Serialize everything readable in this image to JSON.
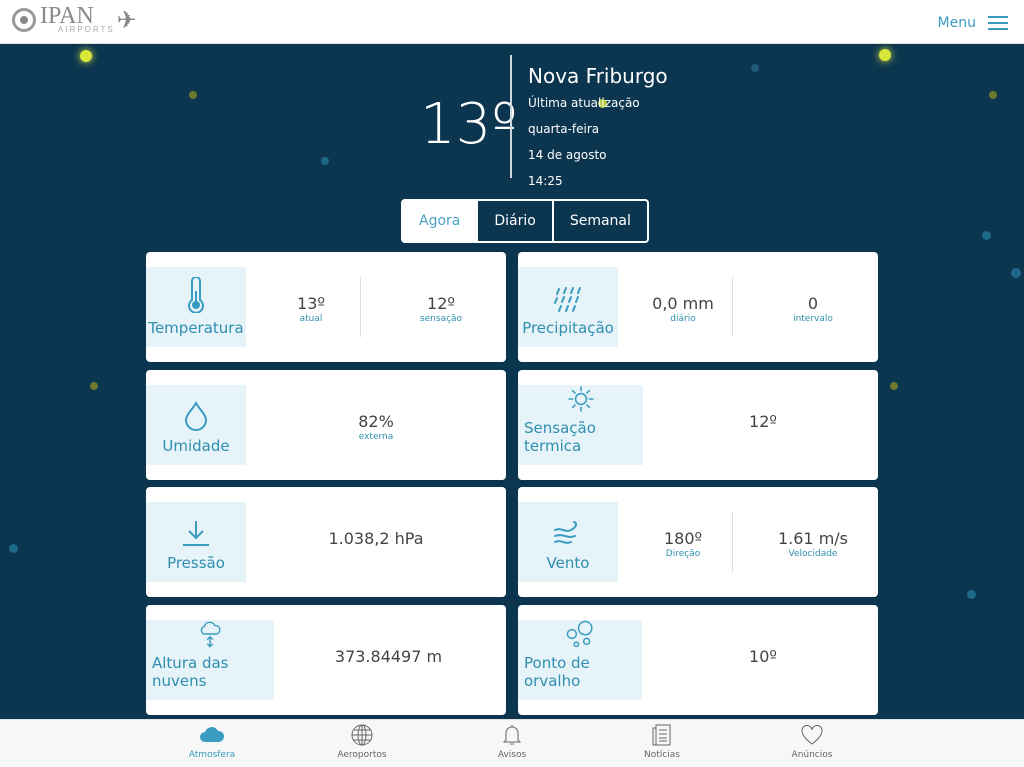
{
  "header": {
    "logo_text": "IPAN",
    "logo_sub": "AIRPORTS",
    "menu_label": "Menu"
  },
  "current": {
    "temperature": "13º",
    "city": "Nova Friburgo",
    "update_label": "Última atualização",
    "weekday": "quarta-feira",
    "date": "14 de agosto",
    "time": "14:25"
  },
  "tabs": [
    {
      "label": "Agora",
      "active": true
    },
    {
      "label": "Diário"
    },
    {
      "label": "Semanal"
    }
  ],
  "accent_color": "#3a9cc1",
  "cards": {
    "temperatura": {
      "title": "Temperatura",
      "v1": "13º",
      "s1": "atual",
      "v2": "12º",
      "s2": "sensação"
    },
    "precipitacao": {
      "title": "Precipitação",
      "v1": "0,0 mm",
      "s1": "diário",
      "v2": "0",
      "s2": "intervalo"
    },
    "umidade": {
      "title": "Umidade",
      "v1": "82%",
      "s1": "externa"
    },
    "sensacao": {
      "title": "Sensação termica",
      "v1": "12º"
    },
    "pressao": {
      "title": "Pressão",
      "v1": "1.038,2 hPa"
    },
    "vento": {
      "title": "Vento",
      "v1": "180º",
      "s1": "Direção",
      "v2": "1.61 m/s",
      "s2": "Velocidade"
    },
    "nuvens": {
      "title": "Altura das nuvens",
      "v1": "373.84497 m"
    },
    "orvalho": {
      "title": "Ponto de orvalho",
      "v1": "10º"
    }
  },
  "nav": [
    {
      "label": "Atmosfera",
      "icon": "cloud-icon",
      "active": true
    },
    {
      "label": "Aeroportos",
      "icon": "globe-icon"
    },
    {
      "label": "Avisos",
      "icon": "bell-icon"
    },
    {
      "label": "Notícias",
      "icon": "news-icon"
    },
    {
      "label": "Anúncios",
      "icon": "heart-icon"
    }
  ]
}
